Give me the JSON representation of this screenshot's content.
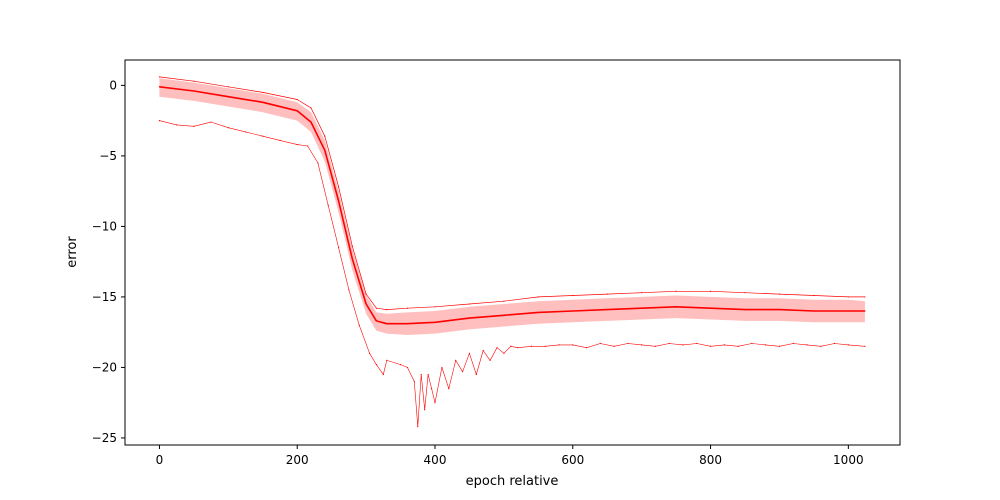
{
  "chart_data": {
    "type": "line",
    "title": "",
    "xlabel": "epoch relative",
    "ylabel": "error",
    "xlim": [
      -50,
      1075
    ],
    "ylim": [
      -25.5,
      1.8
    ],
    "xticks": [
      0,
      200,
      400,
      600,
      800,
      1000
    ],
    "yticks": [
      0,
      -5,
      -10,
      -15,
      -20,
      -25
    ],
    "xtick_labels": [
      "0",
      "200",
      "400",
      "600",
      "800",
      "1000"
    ],
    "ytick_labels": [
      "0",
      "−5",
      "−10",
      "−15",
      "−20",
      "−25"
    ],
    "grid": false,
    "legend": null,
    "colors": {
      "line": "#ff0000",
      "band": "#ffbfbf"
    },
    "series": [
      {
        "role": "mean",
        "x": [
          0,
          50,
          100,
          150,
          200,
          220,
          240,
          260,
          280,
          300,
          315,
          330,
          360,
          400,
          450,
          500,
          550,
          600,
          650,
          700,
          750,
          800,
          850,
          900,
          950,
          1000,
          1024
        ],
        "y": [
          -0.1,
          -0.4,
          -0.8,
          -1.2,
          -1.8,
          -2.6,
          -4.6,
          -8.2,
          -12.3,
          -15.5,
          -16.7,
          -16.9,
          -16.9,
          -16.8,
          -16.5,
          -16.3,
          -16.1,
          -16.0,
          -15.9,
          -15.8,
          -15.7,
          -15.8,
          -15.9,
          -15.9,
          -16.0,
          -16.0,
          -16.0
        ]
      },
      {
        "role": "band-upper",
        "x": [
          0,
          50,
          100,
          150,
          200,
          220,
          240,
          260,
          280,
          300,
          315,
          330,
          360,
          400,
          450,
          500,
          550,
          600,
          650,
          700,
          750,
          800,
          850,
          900,
          950,
          1000,
          1024
        ],
        "y": [
          0.5,
          0.2,
          -0.2,
          -0.6,
          -1.2,
          -1.9,
          -3.9,
          -7.5,
          -11.6,
          -14.9,
          -16.1,
          -16.2,
          -16.1,
          -16.0,
          -15.7,
          -15.5,
          -15.3,
          -15.2,
          -15.1,
          -15.0,
          -14.9,
          -15.0,
          -15.1,
          -15.1,
          -15.2,
          -15.2,
          -15.3
        ]
      },
      {
        "role": "band-lower",
        "x": [
          0,
          50,
          100,
          150,
          200,
          220,
          240,
          260,
          280,
          300,
          315,
          330,
          360,
          400,
          450,
          500,
          550,
          600,
          650,
          700,
          750,
          800,
          850,
          900,
          950,
          1000,
          1024
        ],
        "y": [
          -0.8,
          -1.1,
          -1.5,
          -1.9,
          -2.5,
          -3.3,
          -5.4,
          -9.0,
          -13.1,
          -16.2,
          -17.4,
          -17.6,
          -17.7,
          -17.6,
          -17.3,
          -17.1,
          -16.9,
          -16.8,
          -16.7,
          -16.6,
          -16.5,
          -16.6,
          -16.7,
          -16.7,
          -16.8,
          -16.8,
          -16.8
        ]
      },
      {
        "role": "max",
        "x": [
          0,
          50,
          100,
          150,
          200,
          220,
          240,
          260,
          280,
          300,
          315,
          330,
          360,
          400,
          450,
          500,
          550,
          600,
          650,
          700,
          750,
          800,
          850,
          900,
          950,
          1000,
          1024
        ],
        "y": [
          0.6,
          0.3,
          -0.1,
          -0.5,
          -1.0,
          -1.6,
          -3.6,
          -7.2,
          -11.4,
          -14.8,
          -15.8,
          -15.9,
          -15.8,
          -15.7,
          -15.5,
          -15.3,
          -15.0,
          -14.9,
          -14.8,
          -14.7,
          -14.6,
          -14.6,
          -14.7,
          -14.8,
          -14.9,
          -15.0,
          -15.0
        ]
      },
      {
        "role": "min",
        "x": [
          0,
          25,
          50,
          75,
          100,
          125,
          150,
          175,
          200,
          215,
          230,
          245,
          260,
          275,
          290,
          305,
          315,
          325,
          330,
          350,
          360,
          370,
          375,
          380,
          385,
          390,
          395,
          400,
          410,
          420,
          430,
          440,
          450,
          460,
          470,
          480,
          490,
          500,
          510,
          520,
          540,
          560,
          580,
          600,
          620,
          640,
          660,
          680,
          700,
          720,
          740,
          760,
          780,
          800,
          820,
          840,
          860,
          880,
          900,
          920,
          940,
          960,
          980,
          1000,
          1024
        ],
        "y": [
          -2.5,
          -2.8,
          -2.9,
          -2.6,
          -3.0,
          -3.3,
          -3.6,
          -3.9,
          -4.2,
          -4.3,
          -5.5,
          -8.5,
          -11.5,
          -14.5,
          -17.0,
          -19.0,
          -19.8,
          -20.5,
          -19.5,
          -19.8,
          -20.0,
          -21.0,
          -24.2,
          -20.5,
          -23.0,
          -20.5,
          -21.5,
          -22.5,
          -20.0,
          -21.5,
          -19.5,
          -20.3,
          -19.0,
          -20.5,
          -18.8,
          -19.5,
          -18.6,
          -19.0,
          -18.5,
          -18.6,
          -18.5,
          -18.5,
          -18.4,
          -18.4,
          -18.6,
          -18.3,
          -18.5,
          -18.3,
          -18.4,
          -18.5,
          -18.3,
          -18.4,
          -18.3,
          -18.5,
          -18.4,
          -18.5,
          -18.3,
          -18.4,
          -18.5,
          -18.3,
          -18.4,
          -18.5,
          -18.3,
          -18.4,
          -18.5
        ]
      }
    ]
  }
}
